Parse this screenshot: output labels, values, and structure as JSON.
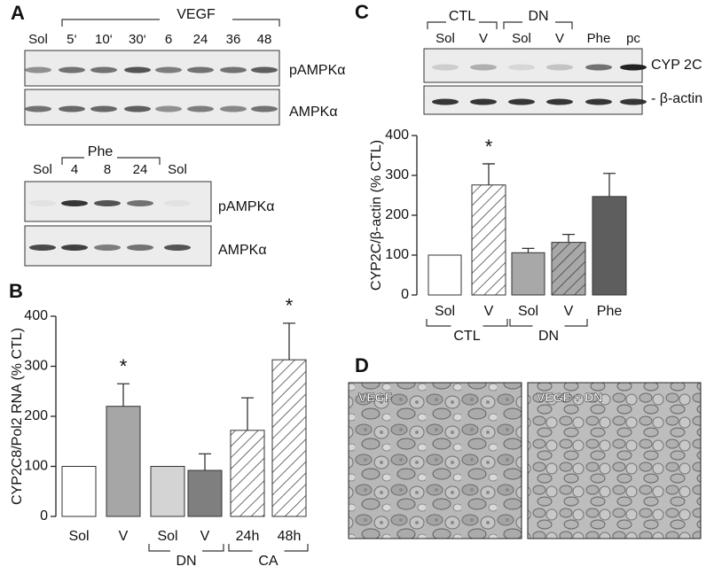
{
  "panel_labels": [
    "A",
    "B",
    "C",
    "D"
  ],
  "blots": {
    "A_top": {
      "group_label": "VEGF",
      "lanes": [
        "Sol",
        "5‘",
        "10‘",
        "30‘",
        "6",
        "24",
        "36",
        "48"
      ],
      "rows": [
        "pAMPKα",
        "AMPKα"
      ]
    },
    "A_bottom": {
      "group_label": "Phe",
      "lanes": [
        "Sol",
        "4",
        "8",
        "24",
        "Sol"
      ],
      "rows": [
        "pAMPKα",
        "AMPKα"
      ]
    },
    "C": {
      "groups": [
        "CTL",
        "DN"
      ],
      "lanes": [
        "Sol",
        "V",
        "Sol",
        "V",
        "Phe",
        "pc"
      ],
      "rows": [
        "CYP 2C",
        "- β-actin"
      ]
    }
  },
  "micrographs": [
    "VEGF",
    "VEGF + DN"
  ],
  "chart_data": [
    {
      "type": "bar",
      "y_label": "CYP2C8/Pol2 RNA (% CTL)",
      "categories": [
        "Sol",
        "V",
        "Sol",
        "V",
        "24h",
        "48h"
      ],
      "values": [
        100,
        220,
        100,
        92,
        172,
        313
      ],
      "errors": [
        null,
        45,
        null,
        33,
        65,
        73
      ],
      "colors": [
        "#ffffff",
        "#a6a6a6",
        "#d4d4d4",
        "#7f7f7f",
        "#ffffff",
        "#ffffff"
      ],
      "patterns": [
        null,
        null,
        null,
        null,
        "hatch",
        "hatch"
      ],
      "group": [
        null,
        null,
        "DN",
        "DN",
        "CA",
        "CA"
      ],
      "annotations": [
        null,
        "*",
        null,
        null,
        null,
        "*"
      ],
      "ylim": [
        0,
        400
      ],
      "yticks": [
        0,
        100,
        200,
        300,
        400
      ]
    },
    {
      "type": "bar",
      "y_label": "CYP2C/β-actin (% CTL)",
      "categories": [
        "Sol",
        "V",
        "Sol",
        "V",
        "Phe"
      ],
      "values": [
        100,
        276,
        106,
        132,
        247
      ],
      "errors": [
        null,
        53,
        11,
        20,
        58
      ],
      "colors": [
        "#ffffff",
        "#ffffff",
        "#a8a8a8",
        "#a8a8a8",
        "#5e5e5e"
      ],
      "patterns": [
        null,
        "hatch",
        null,
        "hatch",
        null
      ],
      "group": [
        "CTL",
        "CTL",
        "DN",
        "DN",
        null
      ],
      "annotations": [
        null,
        "*",
        null,
        null,
        null
      ],
      "ylim": [
        0,
        400
      ],
      "yticks": [
        0,
        100,
        200,
        300,
        400
      ]
    }
  ]
}
